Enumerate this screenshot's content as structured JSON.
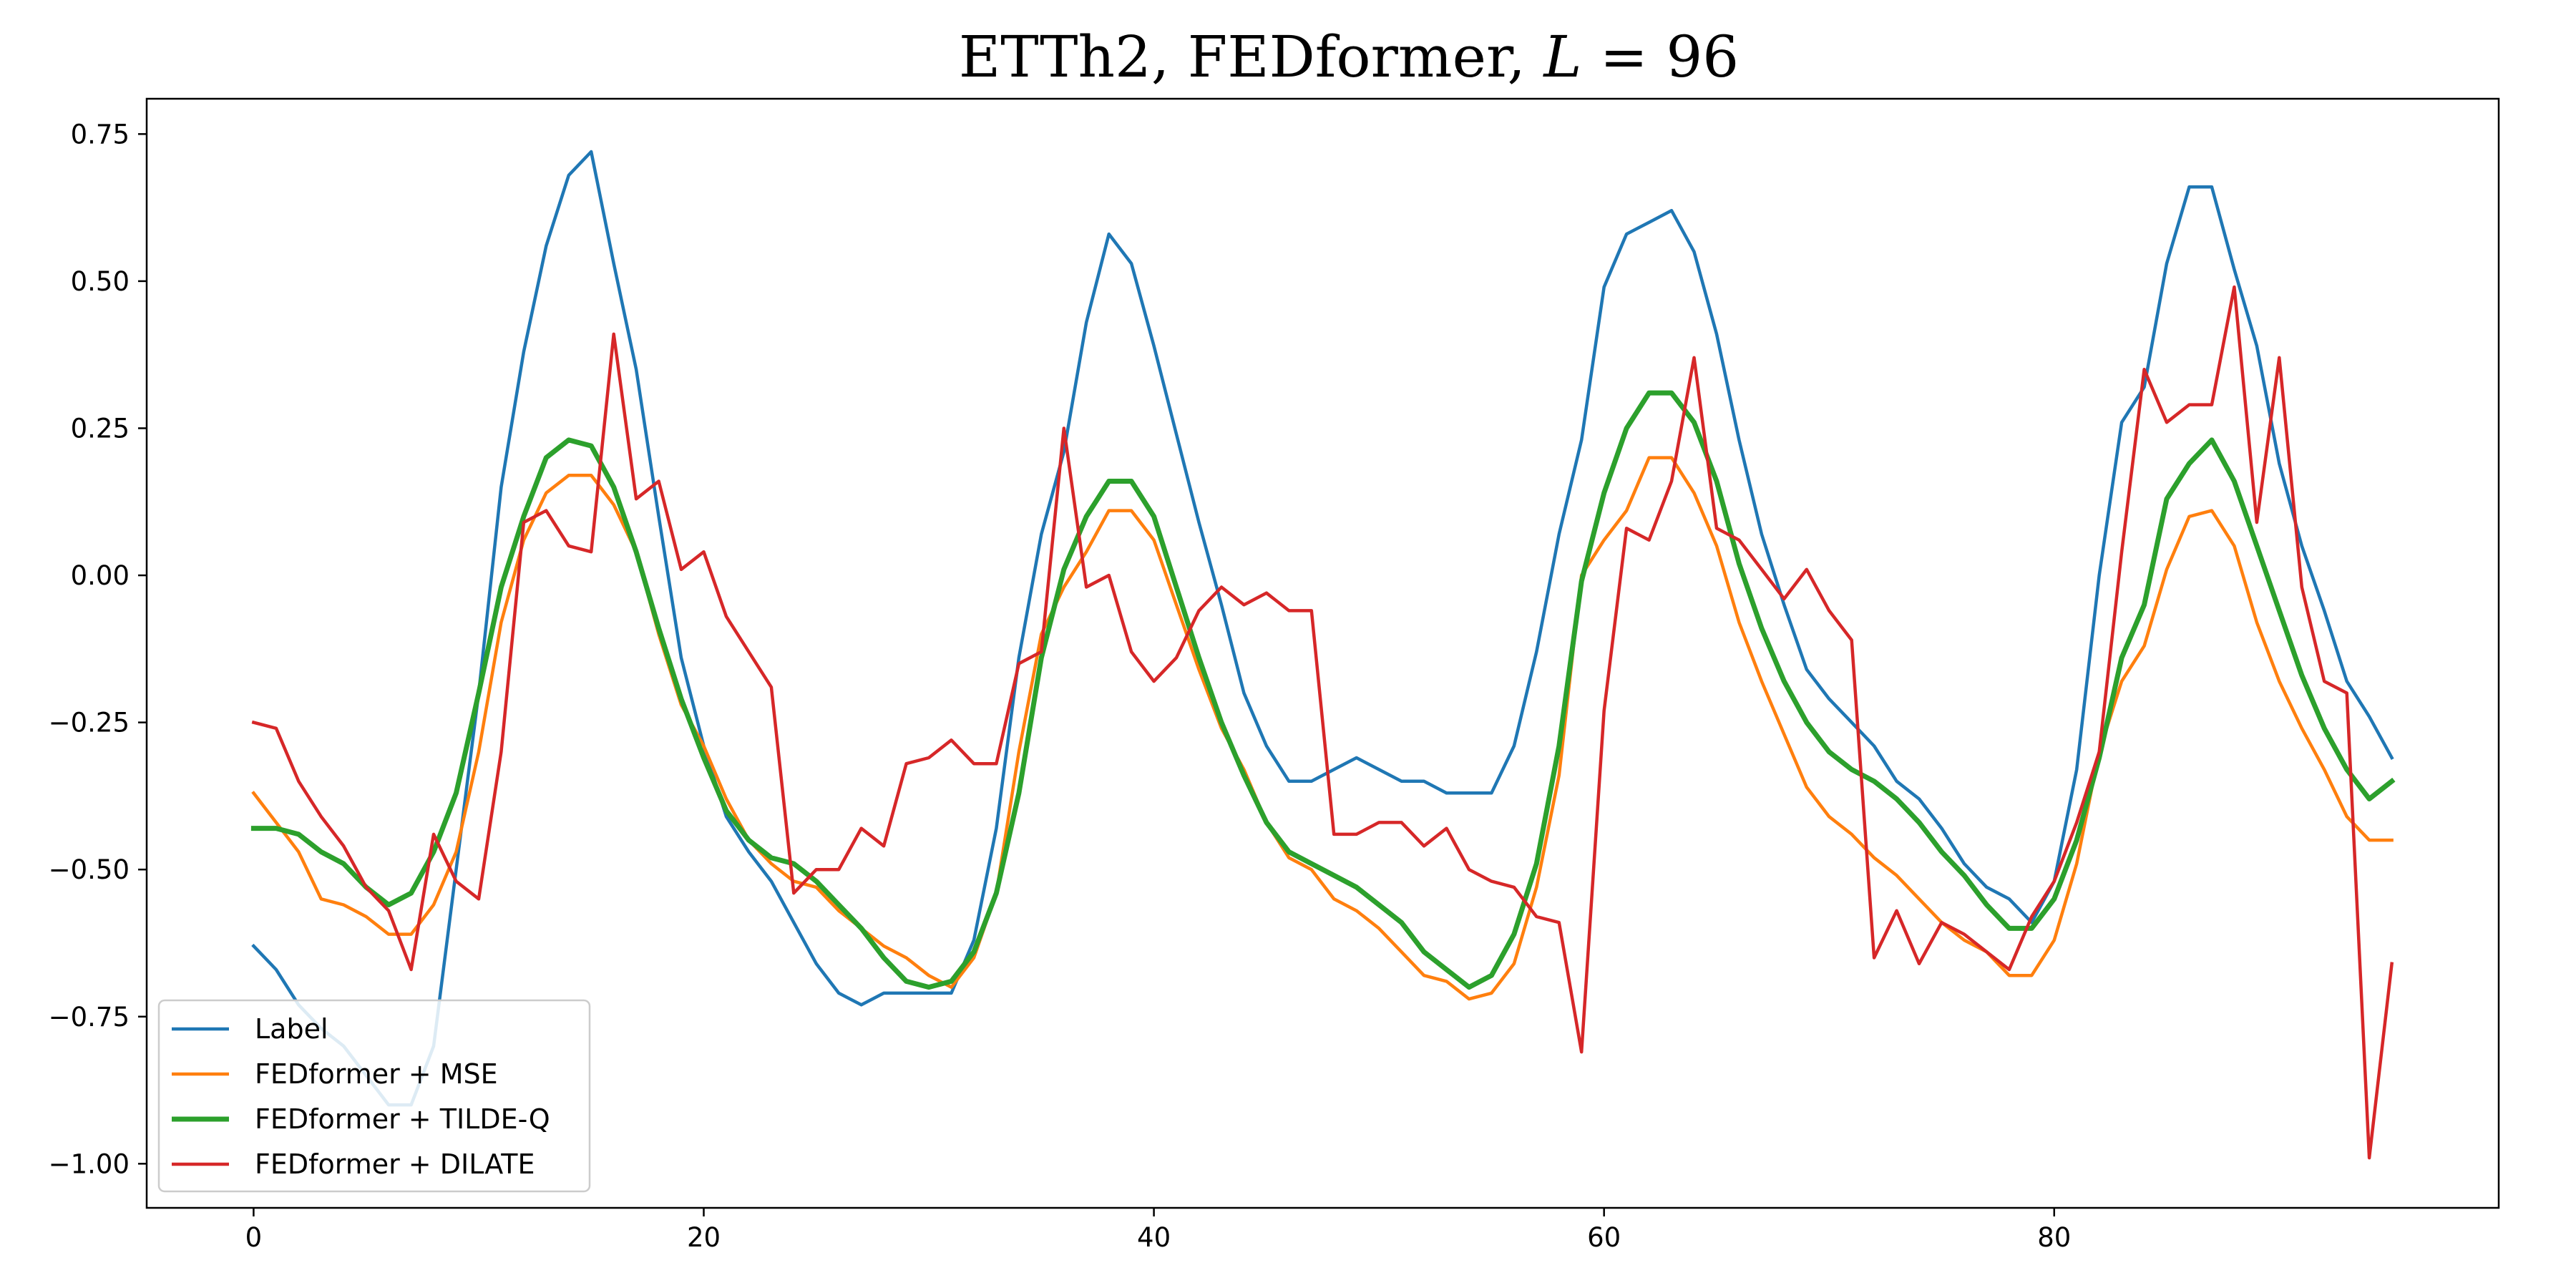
{
  "chart_data": {
    "type": "line",
    "title": "ETTh2, FEDformer, L = 96",
    "title_parts": {
      "prefix": "ETTh2, FEDformer, ",
      "var": "L",
      "suffix": " = 96"
    },
    "xlabel": "",
    "ylabel": "",
    "xlim": [
      -4.75,
      99.75
    ],
    "ylim": [
      -1.075,
      0.81
    ],
    "x_ticks": [
      0,
      20,
      40,
      60,
      80
    ],
    "x_tick_labels": [
      "0",
      "20",
      "40",
      "60",
      "80"
    ],
    "y_ticks": [
      0.75,
      0.5,
      0.25,
      0.0,
      -0.25,
      -0.5,
      -0.75,
      -1.0
    ],
    "y_tick_labels": [
      "0.75",
      "0.50",
      "0.25",
      "0.00",
      "−0.25",
      "−0.50",
      "−0.75",
      "−1.00"
    ],
    "grid": false,
    "legend_position": "lower-left",
    "x": [
      0,
      1,
      2,
      3,
      4,
      5,
      6,
      7,
      8,
      9,
      10,
      11,
      12,
      13,
      14,
      15,
      16,
      17,
      18,
      19,
      20,
      21,
      22,
      23,
      24,
      25,
      26,
      27,
      28,
      29,
      30,
      31,
      32,
      33,
      34,
      35,
      36,
      37,
      38,
      39,
      40,
      41,
      42,
      43,
      44,
      45,
      46,
      47,
      48,
      49,
      50,
      51,
      52,
      53,
      54,
      55,
      56,
      57,
      58,
      59,
      60,
      61,
      62,
      63,
      64,
      65,
      66,
      67,
      68,
      69,
      70,
      71,
      72,
      73,
      74,
      75,
      76,
      77,
      78,
      79,
      80,
      81,
      82,
      83,
      84,
      85,
      86,
      87,
      88,
      89,
      90,
      91,
      92,
      93,
      94,
      95
    ],
    "series": [
      {
        "name": "Label",
        "color": "#1f77b4",
        "width": 4.5,
        "values": [
          -0.63,
          -0.67,
          -0.73,
          -0.77,
          -0.8,
          -0.85,
          -0.9,
          -0.9,
          -0.8,
          -0.5,
          -0.2,
          0.15,
          0.38,
          0.56,
          0.68,
          0.72,
          0.53,
          0.35,
          0.1,
          -0.14,
          -0.29,
          -0.41,
          -0.47,
          -0.52,
          -0.59,
          -0.66,
          -0.71,
          -0.73,
          -0.71,
          -0.71,
          -0.71,
          -0.71,
          -0.62,
          -0.43,
          -0.14,
          0.07,
          0.21,
          0.43,
          0.58,
          0.53,
          0.39,
          0.24,
          0.09,
          -0.05,
          -0.2,
          -0.29,
          -0.35,
          -0.35,
          -0.33,
          -0.31,
          -0.33,
          -0.35,
          -0.35,
          -0.37,
          -0.37,
          -0.37,
          -0.29,
          -0.13,
          0.07,
          0.23,
          0.49,
          0.58,
          0.6,
          0.62,
          0.55,
          0.41,
          0.23,
          0.07,
          -0.05,
          -0.16,
          -0.21,
          -0.25,
          -0.29,
          -0.35,
          -0.38,
          -0.43,
          -0.49,
          -0.53,
          -0.55,
          -0.59,
          -0.52,
          -0.33,
          0.0,
          0.26,
          0.32,
          0.53,
          0.66,
          0.66,
          0.52,
          0.39,
          0.19,
          0.05,
          -0.06,
          -0.18,
          -0.24,
          -0.31
        ]
      },
      {
        "name": "FEDformer + MSE",
        "color": "#ff7f0e",
        "width": 4.5,
        "values": [
          -0.37,
          -0.42,
          -0.47,
          -0.55,
          -0.56,
          -0.58,
          -0.61,
          -0.61,
          -0.56,
          -0.47,
          -0.3,
          -0.08,
          0.06,
          0.14,
          0.17,
          0.17,
          0.12,
          0.04,
          -0.1,
          -0.22,
          -0.29,
          -0.38,
          -0.45,
          -0.49,
          -0.52,
          -0.53,
          -0.57,
          -0.6,
          -0.63,
          -0.65,
          -0.68,
          -0.7,
          -0.65,
          -0.54,
          -0.3,
          -0.1,
          -0.02,
          0.04,
          0.11,
          0.11,
          0.06,
          -0.05,
          -0.16,
          -0.26,
          -0.33,
          -0.42,
          -0.48,
          -0.5,
          -0.55,
          -0.57,
          -0.6,
          -0.64,
          -0.68,
          -0.69,
          -0.72,
          -0.71,
          -0.66,
          -0.53,
          -0.34,
          0.0,
          0.06,
          0.11,
          0.2,
          0.2,
          0.14,
          0.05,
          -0.08,
          -0.18,
          -0.27,
          -0.36,
          -0.41,
          -0.44,
          -0.48,
          -0.51,
          -0.55,
          -0.59,
          -0.62,
          -0.64,
          -0.68,
          -0.68,
          -0.62,
          -0.49,
          -0.3,
          -0.18,
          -0.12,
          0.01,
          0.1,
          0.11,
          0.05,
          -0.08,
          -0.18,
          -0.26,
          -0.33,
          -0.41,
          -0.45,
          -0.45
        ]
      },
      {
        "name": "FEDformer + TILDE-Q",
        "color": "#2ca02c",
        "width": 7,
        "values": [
          -0.43,
          -0.43,
          -0.44,
          -0.47,
          -0.49,
          -0.53,
          -0.56,
          -0.54,
          -0.47,
          -0.37,
          -0.2,
          -0.02,
          0.1,
          0.2,
          0.23,
          0.22,
          0.15,
          0.04,
          -0.09,
          -0.21,
          -0.31,
          -0.4,
          -0.45,
          -0.48,
          -0.49,
          -0.52,
          -0.56,
          -0.6,
          -0.65,
          -0.69,
          -0.7,
          -0.69,
          -0.64,
          -0.54,
          -0.37,
          -0.14,
          0.01,
          0.1,
          0.16,
          0.16,
          0.1,
          -0.02,
          -0.14,
          -0.25,
          -0.34,
          -0.42,
          -0.47,
          -0.49,
          -0.51,
          -0.53,
          -0.56,
          -0.59,
          -0.64,
          -0.67,
          -0.7,
          -0.68,
          -0.61,
          -0.49,
          -0.29,
          -0.01,
          0.14,
          0.25,
          0.31,
          0.31,
          0.26,
          0.16,
          0.02,
          -0.09,
          -0.18,
          -0.25,
          -0.3,
          -0.33,
          -0.35,
          -0.38,
          -0.42,
          -0.47,
          -0.51,
          -0.56,
          -0.6,
          -0.6,
          -0.55,
          -0.45,
          -0.31,
          -0.14,
          -0.05,
          0.13,
          0.19,
          0.23,
          0.16,
          0.05,
          -0.06,
          -0.17,
          -0.26,
          -0.33,
          -0.38,
          -0.35
        ]
      },
      {
        "name": "FEDformer + DILATE",
        "color": "#d62728",
        "width": 4.5,
        "values": [
          -0.25,
          -0.26,
          -0.35,
          -0.41,
          -0.46,
          -0.53,
          -0.57,
          -0.67,
          -0.44,
          -0.52,
          -0.55,
          -0.3,
          0.09,
          0.11,
          0.05,
          0.04,
          0.41,
          0.13,
          0.16,
          0.01,
          0.04,
          -0.07,
          -0.13,
          -0.19,
          -0.54,
          -0.5,
          -0.5,
          -0.43,
          -0.46,
          -0.32,
          -0.31,
          -0.28,
          -0.32,
          -0.32,
          -0.15,
          -0.13,
          0.25,
          -0.02,
          0.0,
          -0.13,
          -0.18,
          -0.14,
          -0.06,
          -0.02,
          -0.05,
          -0.03,
          -0.06,
          -0.06,
          -0.44,
          -0.44,
          -0.42,
          -0.42,
          -0.46,
          -0.43,
          -0.5,
          -0.52,
          -0.53,
          -0.58,
          -0.59,
          -0.81,
          -0.23,
          0.08,
          0.06,
          0.16,
          0.37,
          0.08,
          0.06,
          0.01,
          -0.04,
          0.01,
          -0.06,
          -0.11,
          -0.65,
          -0.57,
          -0.66,
          -0.59,
          -0.61,
          -0.64,
          -0.67,
          -0.58,
          -0.52,
          -0.42,
          -0.3,
          0.04,
          0.35,
          0.26,
          0.29,
          0.29,
          0.49,
          0.09,
          0.37,
          -0.02,
          -0.18,
          -0.2,
          -0.99,
          -0.66
        ]
      }
    ]
  }
}
